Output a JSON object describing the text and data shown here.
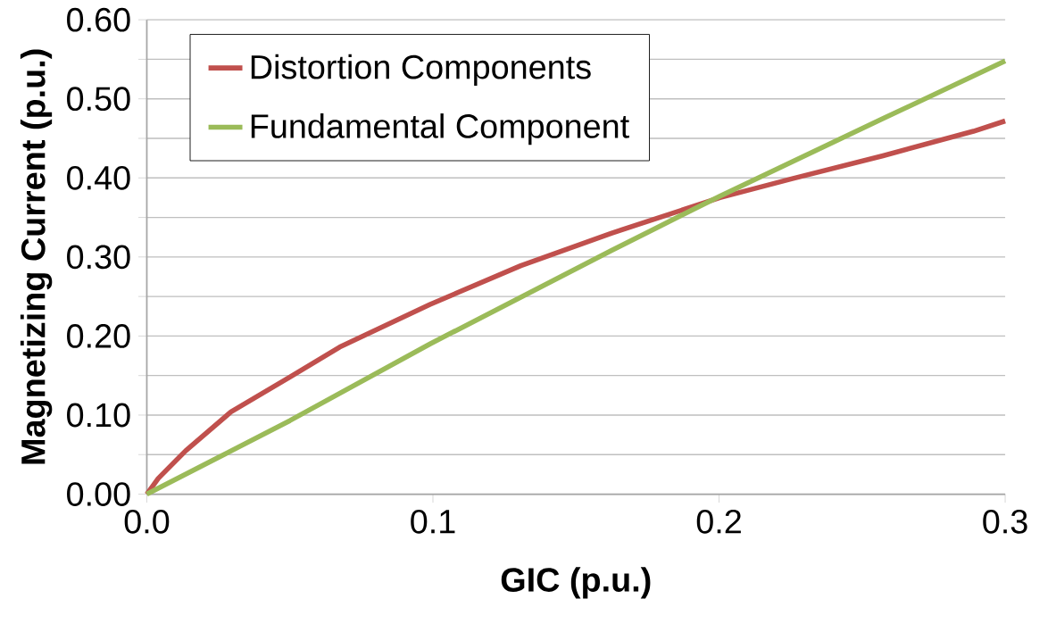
{
  "chart_data": {
    "type": "line",
    "xlabel": "GIC (p.u.)",
    "ylabel": "Magnetizing  Current (p.u.)",
    "series": [
      {
        "name": "Distortion Components",
        "color": "#c0504d",
        "x": [
          0,
          0.004,
          0.0136,
          0.0294,
          0.05,
          0.0674,
          0.099,
          0.1307,
          0.1623,
          0.2003,
          0.2256,
          0.2573,
          0.2889,
          0.3
        ],
        "values": [
          0,
          0.02,
          0.055,
          0.104,
          0.148,
          0.186,
          0.24,
          0.289,
          0.33,
          0.375,
          0.399,
          0.428,
          0.459,
          0.472
        ]
      },
      {
        "name": "Fundamental Component",
        "color": "#9bbb59",
        "x": [
          0,
          0.05,
          0.099,
          0.1623,
          0.2003,
          0.2573,
          0.3
        ],
        "values": [
          0,
          0.093,
          0.19,
          0.308,
          0.377,
          0.475,
          0.548
        ]
      }
    ],
    "xlim": [
      0,
      0.3
    ],
    "ylim": [
      0,
      0.6
    ],
    "xticks": [
      {
        "value": 0,
        "label": "0.0"
      },
      0.1,
      0.2,
      0.3
    ],
    "yticks": [
      {
        "value": 0,
        "label": "0.00"
      },
      {
        "value": 0.05,
        "label": null
      },
      {
        "value": 0.1,
        "label": "0.10"
      },
      {
        "value": 0.15,
        "label": null
      },
      {
        "value": 0.2,
        "label": "0.20"
      },
      {
        "value": 0.25,
        "label": null
      },
      {
        "value": 0.3,
        "label": "0.30"
      },
      {
        "value": 0.35,
        "label": null
      },
      {
        "value": 0.4,
        "label": "0.40"
      },
      {
        "value": 0.45,
        "label": null
      },
      {
        "value": 0.5,
        "label": "0.50"
      },
      {
        "value": 0.55,
        "label": null
      },
      {
        "value": 0.6,
        "label": "0.60"
      }
    ],
    "grid": "y",
    "legend": "top left",
    "marker": "none",
    "line_style": "solid"
  }
}
